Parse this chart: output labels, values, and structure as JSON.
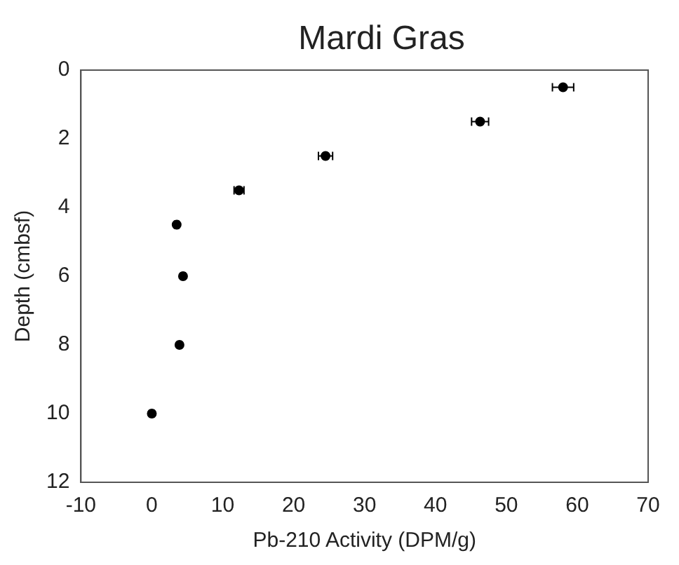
{
  "chart_data": {
    "type": "scatter",
    "title": "Mardi Gras",
    "xlabel": "Pb-210 Activity (DPM/g)",
    "ylabel": "Depth (cmbsf)",
    "series": [
      {
        "color": "#000000",
        "x": [
          58,
          46.3,
          24.5,
          12.3,
          3.5,
          4.4,
          3.9,
          0
        ],
        "values": [
          0.5,
          1.5,
          2.5,
          3.5,
          4.5,
          6,
          8,
          10
        ],
        "xerrors": [
          1.5,
          1.2,
          1,
          0.7,
          0.3,
          0.3,
          0.3,
          0.3
        ]
      }
    ],
    "xlim": [
      -10,
      70
    ],
    "xticks": [
      -10,
      0,
      10,
      20,
      30,
      40,
      50,
      60,
      70
    ],
    "ylim": [
      12,
      0
    ],
    "yticks": [
      0,
      2,
      4,
      6,
      8,
      10,
      12
    ],
    "grid": false,
    "legend": false,
    "marker": "circle"
  }
}
